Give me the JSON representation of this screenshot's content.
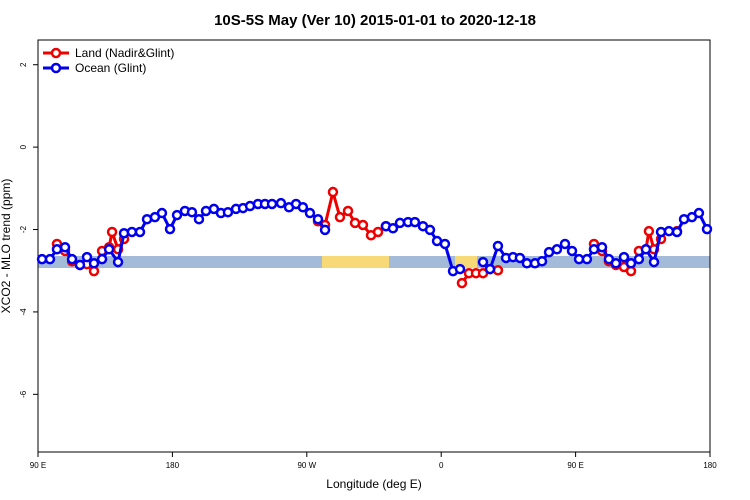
{
  "chart_data": {
    "type": "line",
    "title": "10S-5S May (Ver 10)   2015-01-01 to 2020-12-18",
    "x_label": "Longitude (deg E)",
    "y_label": "XCO2 - MLO trend (ppm)",
    "xlim": [
      90,
      540
    ],
    "ylim": [
      -7.4,
      2.6
    ],
    "xticks": [
      {
        "value": 90,
        "label": "90 E"
      },
      180,
      {
        "value": 270,
        "label": "90 W"
      },
      {
        "value": 360,
        "label": "0"
      },
      {
        "value": 450,
        "label": "90 E"
      },
      {
        "value": 540,
        "label": "180"
      }
    ],
    "yticks": [
      2,
      0,
      -2,
      -4,
      -6
    ],
    "legend": "topleft",
    "series": [
      {
        "name": "Land (Nadir&Glint)",
        "color": "#ee0000",
        "x": [
          102.7,
          108.1,
          112.8,
          118.1,
          122.8,
          127.5,
          132.9,
          137.6,
          139.6,
          143.6,
          147.6,
          null,
          277.5,
          282.2,
          287.5,
          292.2,
          297.6,
          302.3,
          307.6,
          313.0,
          317.7,
          323.0,
          null,
          373.9,
          378.6,
          383.3,
          388.0,
          392.7,
          398.0,
          null,
          462.3,
          467.7,
          472.3,
          477.0,
          482.4,
          487.1,
          492.4,
          497.1,
          499.1,
          502.5,
          507.2,
          null,
          517.9
        ],
        "values": [
          -2.35,
          -2.52,
          -2.77,
          -2.86,
          -2.84,
          -3.01,
          -2.52,
          -2.43,
          -2.06,
          -2.48,
          -2.23,
          null,
          -1.8,
          -1.89,
          -1.09,
          -1.7,
          -1.55,
          -1.84,
          -1.89,
          -2.14,
          -2.06,
          -1.92,
          null,
          -3.3,
          -3.06,
          -3.06,
          -3.06,
          -2.96,
          -2.99,
          null,
          -2.35,
          -2.52,
          -2.77,
          -2.86,
          -2.91,
          -3.01,
          -2.52,
          -2.48,
          -2.04,
          -2.48,
          -2.23,
          null,
          -2.04
        ]
      },
      {
        "name": "Ocean (Glint)",
        "color": "#0000ee",
        "x": [
          92.7,
          98.0,
          102.7,
          108.1,
          112.8,
          118.1,
          122.8,
          127.5,
          132.9,
          137.6,
          143.6,
          147.6,
          152.9,
          158.3,
          163.0,
          168.3,
          173.0,
          178.4,
          183.1,
          188.4,
          193.1,
          197.8,
          202.5,
          207.8,
          212.5,
          217.2,
          222.6,
          227.3,
          232.0,
          237.3,
          242.0,
          246.7,
          252.7,
          258.1,
          262.8,
          267.4,
          272.1,
          277.5,
          282.2,
          null,
          323.0,
          327.7,
          332.4,
          337.8,
          342.4,
          347.8,
          352.5,
          357.2,
          362.5,
          367.9,
          372.6,
          null,
          388.0,
          392.7,
          398.0,
          403.4,
          408.1,
          412.7,
          417.4,
          422.8,
          427.5,
          432.2,
          437.5,
          442.9,
          447.6,
          452.3,
          457.6,
          462.3,
          467.7,
          472.3,
          477.0,
          482.4,
          487.1,
          492.4,
          497.1,
          502.5,
          507.2,
          512.5,
          517.9,
          522.6,
          527.9,
          532.6,
          538.0
        ],
        "values": [
          -2.72,
          -2.72,
          -2.48,
          -2.43,
          -2.72,
          -2.86,
          -2.67,
          -2.82,
          -2.72,
          -2.48,
          -2.79,
          -2.09,
          -2.06,
          -2.06,
          -1.75,
          -1.7,
          -1.6,
          -1.99,
          -1.65,
          -1.55,
          -1.58,
          -1.75,
          -1.55,
          -1.5,
          -1.6,
          -1.58,
          -1.5,
          -1.48,
          -1.43,
          -1.38,
          -1.38,
          -1.38,
          -1.36,
          -1.46,
          -1.38,
          -1.46,
          -1.6,
          -1.75,
          -2.01,
          null,
          -1.92,
          -1.97,
          -1.84,
          -1.82,
          -1.82,
          -1.92,
          -2.01,
          -2.28,
          -2.35,
          -3.01,
          -2.96,
          null,
          -2.79,
          -2.96,
          -2.4,
          -2.69,
          -2.67,
          -2.69,
          -2.82,
          -2.82,
          -2.77,
          -2.55,
          -2.48,
          -2.35,
          -2.52,
          -2.72,
          -2.72,
          -2.48,
          -2.43,
          -2.72,
          -2.82,
          -2.67,
          -2.82,
          -2.72,
          -2.48,
          -2.79,
          -2.06,
          -2.04,
          -2.06,
          -1.75,
          -1.7,
          -1.6,
          -1.99
        ]
      }
    ]
  }
}
